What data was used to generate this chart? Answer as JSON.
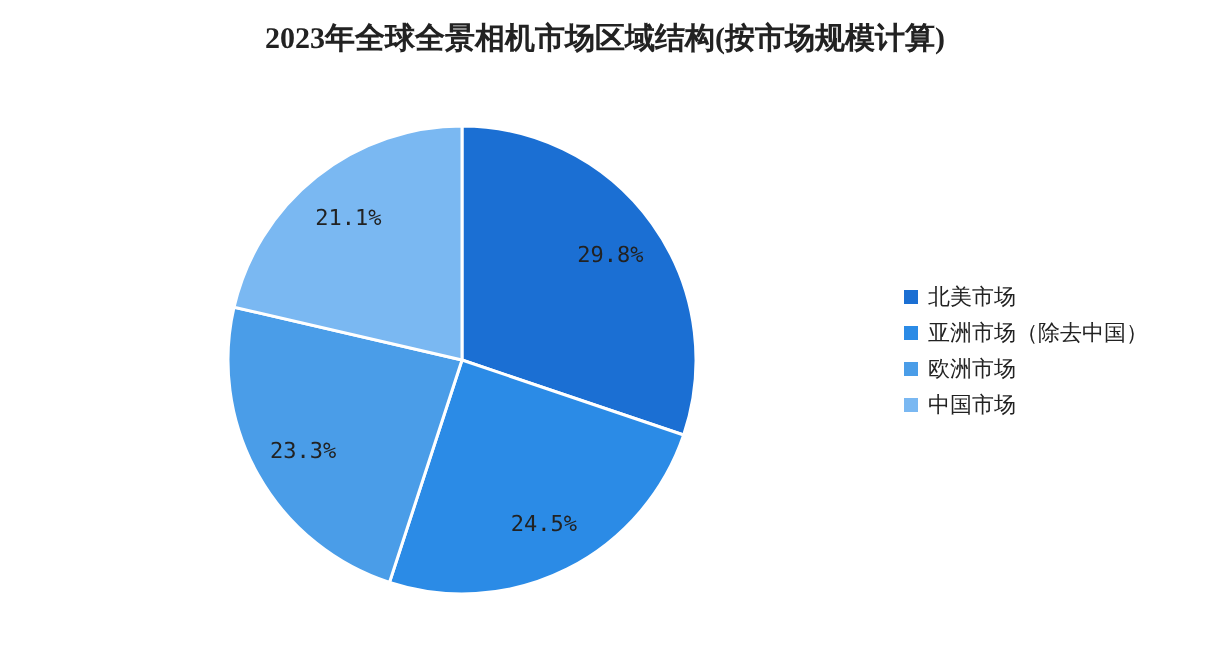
{
  "chart_data": {
    "type": "pie",
    "title": "2023年全球全景相机市场区域结构(按市场规模计算)",
    "categories": [
      "北美市场",
      "亚洲市场（除去中国）",
      "欧洲市场",
      "中国市场"
    ],
    "values": [
      29.8,
      24.5,
      23.3,
      21.1
    ],
    "colors": [
      "#1b6fd3",
      "#2b8be6",
      "#4a9de8",
      "#7ab8f2"
    ],
    "value_labels": [
      "29.8%",
      "24.5%",
      "23.3%",
      "21.1%"
    ],
    "legend": "right"
  }
}
